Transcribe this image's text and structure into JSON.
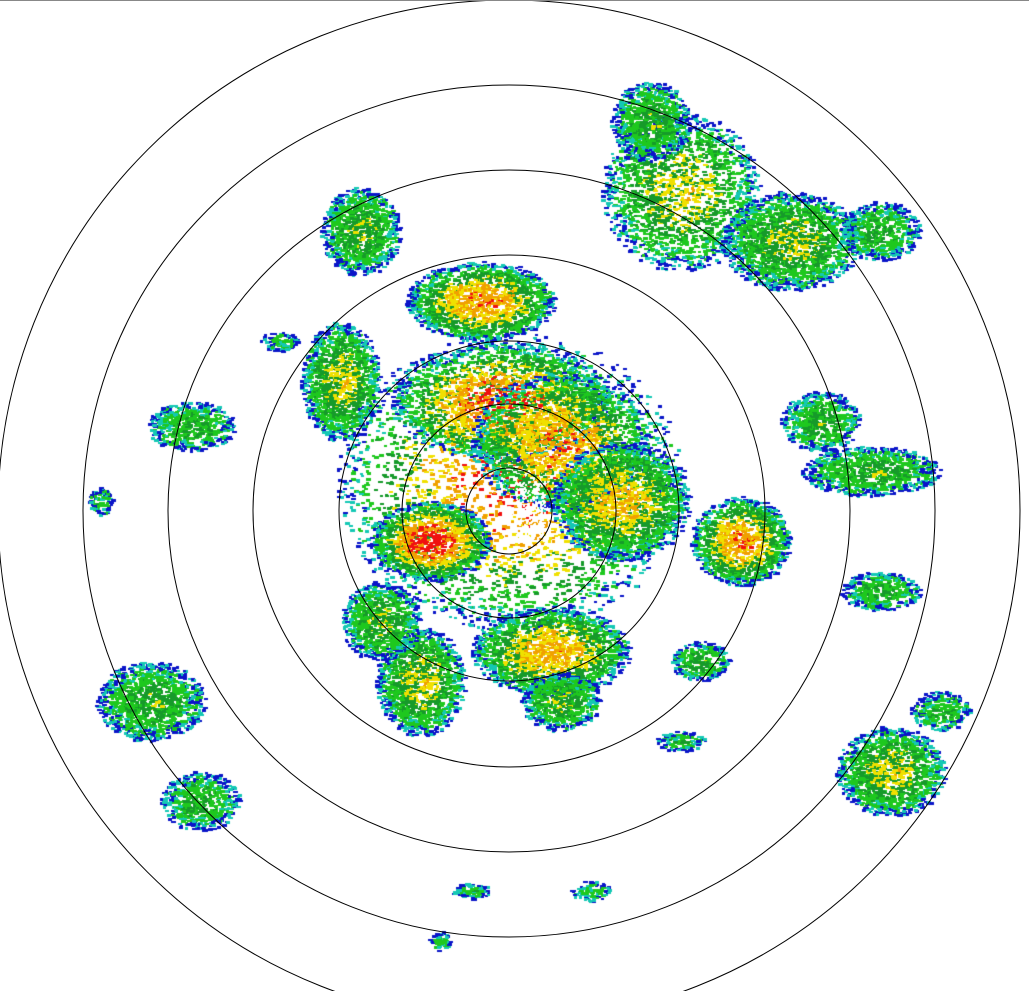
{
  "radar": {
    "product": "reflectivity-ppi",
    "range_rings": 7,
    "palette": {
      "weak": "#0a14c8",
      "light": "#1ec81e",
      "cyan": "#14c8b4",
      "moderate": "#169a2a",
      "yellow": "#f0e000",
      "orange": "#f0a000",
      "heavy": "#f01010",
      "ring": "#000000",
      "background": "#ffffff"
    }
  }
}
